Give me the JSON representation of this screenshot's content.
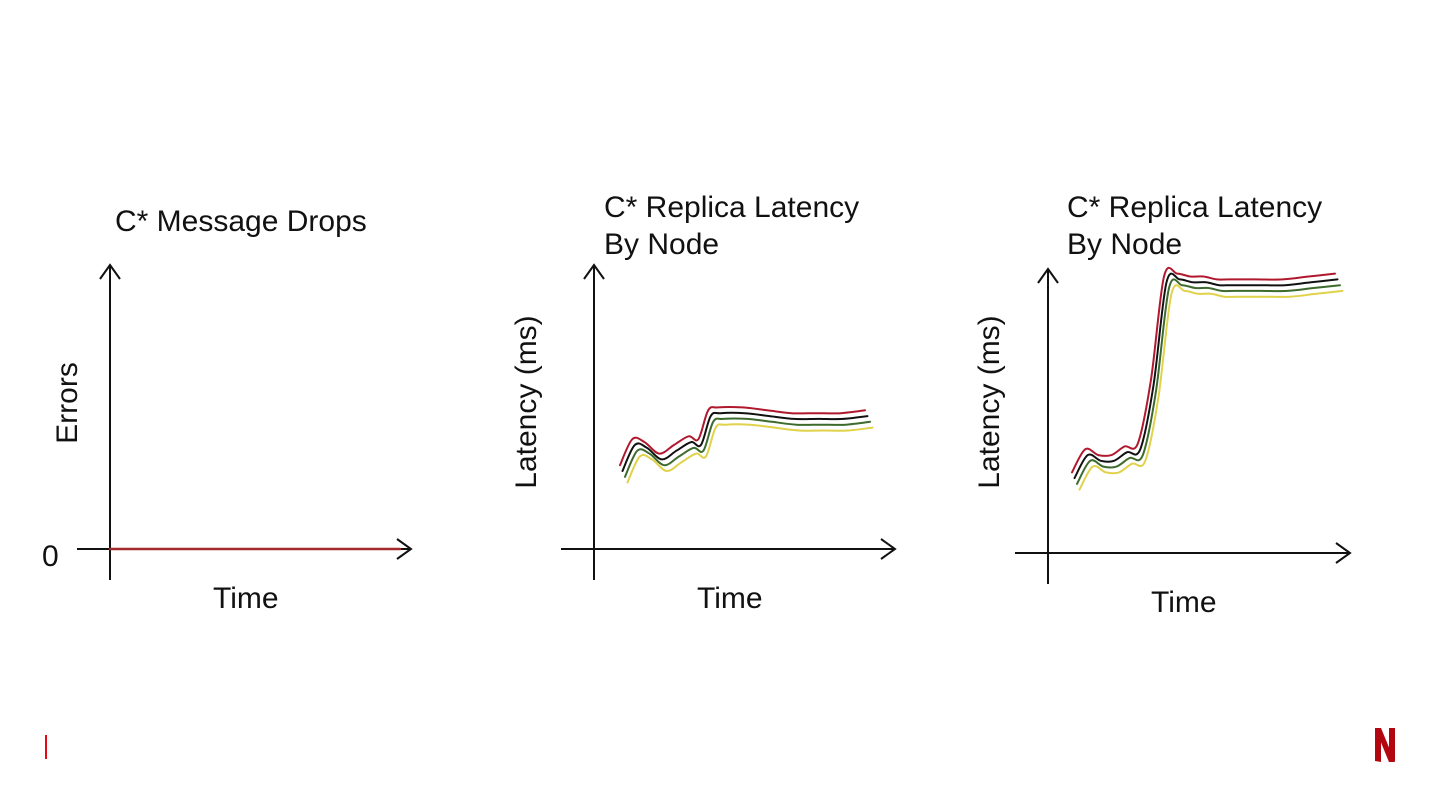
{
  "slide": {
    "footer_marker_color": "#e50914",
    "logo_icon": "netflix-n-logo",
    "logo_color": "#b20710"
  },
  "chart_data": [
    {
      "type": "line",
      "title": "C* Message Drops",
      "xlabel": "Time",
      "ylabel": "Errors",
      "y_tick_labels": [
        "0"
      ],
      "x": [
        0,
        10,
        20,
        30,
        40,
        50,
        60,
        70,
        80,
        90,
        100
      ],
      "ylim": [
        0,
        10
      ],
      "series": [
        {
          "color": "#a32a2a",
          "values": [
            0,
            0,
            0,
            0,
            0,
            0,
            0,
            0,
            0,
            0,
            0
          ]
        }
      ]
    },
    {
      "type": "line",
      "title": "C* Replica Latency\nBy Node",
      "xlabel": "Time",
      "ylabel": "Latency (ms)",
      "x": [
        0,
        5,
        10,
        16,
        22,
        28,
        32,
        36,
        40,
        50,
        60,
        70,
        80,
        90,
        100
      ],
      "ylim": [
        0,
        100
      ],
      "series": [
        {
          "color": "#b0182e",
          "values": [
            29,
            38,
            37,
            33,
            36,
            39,
            38,
            48,
            49,
            49,
            48,
            47,
            47,
            47,
            48
          ]
        },
        {
          "color": "#111111",
          "values": [
            27,
            36,
            35,
            31,
            34,
            37,
            36,
            46,
            47,
            47,
            46,
            45,
            45,
            45,
            46
          ]
        },
        {
          "color": "#3d6b2e",
          "values": [
            25,
            34,
            33,
            29,
            32,
            35,
            34,
            44,
            45,
            45,
            44,
            43,
            43,
            43,
            44
          ]
        },
        {
          "color": "#e0d24a",
          "values": [
            23,
            32,
            31,
            27,
            30,
            33,
            32,
            42,
            43,
            43,
            42,
            41,
            41,
            41,
            42
          ]
        }
      ]
    },
    {
      "type": "line",
      "title": "C* Replica Latency\nBy Node",
      "xlabel": "Time",
      "ylabel": "Latency (ms)",
      "x": [
        0,
        5,
        10,
        15,
        20,
        25,
        30,
        35,
        40,
        45,
        50,
        55,
        60,
        70,
        80,
        90,
        100
      ],
      "ylim": [
        0,
        100
      ],
      "series": [
        {
          "color": "#b0182e",
          "values": [
            28,
            36,
            34,
            34,
            37,
            38,
            60,
            96,
            97,
            96,
            96,
            95,
            95,
            95,
            95,
            96,
            97
          ]
        },
        {
          "color": "#111111",
          "values": [
            26,
            34,
            32,
            32,
            35,
            36,
            58,
            94,
            95,
            94,
            94,
            93,
            93,
            93,
            93,
            94,
            95
          ]
        },
        {
          "color": "#3d6b2e",
          "values": [
            24,
            32,
            30,
            30,
            33,
            34,
            56,
            92,
            93,
            92,
            92,
            91,
            91,
            91,
            91,
            92,
            93
          ]
        },
        {
          "color": "#e0d24a",
          "values": [
            22,
            30,
            28,
            28,
            31,
            32,
            54,
            90,
            91,
            90,
            90,
            89,
            89,
            89,
            89,
            90,
            91
          ]
        }
      ]
    }
  ]
}
